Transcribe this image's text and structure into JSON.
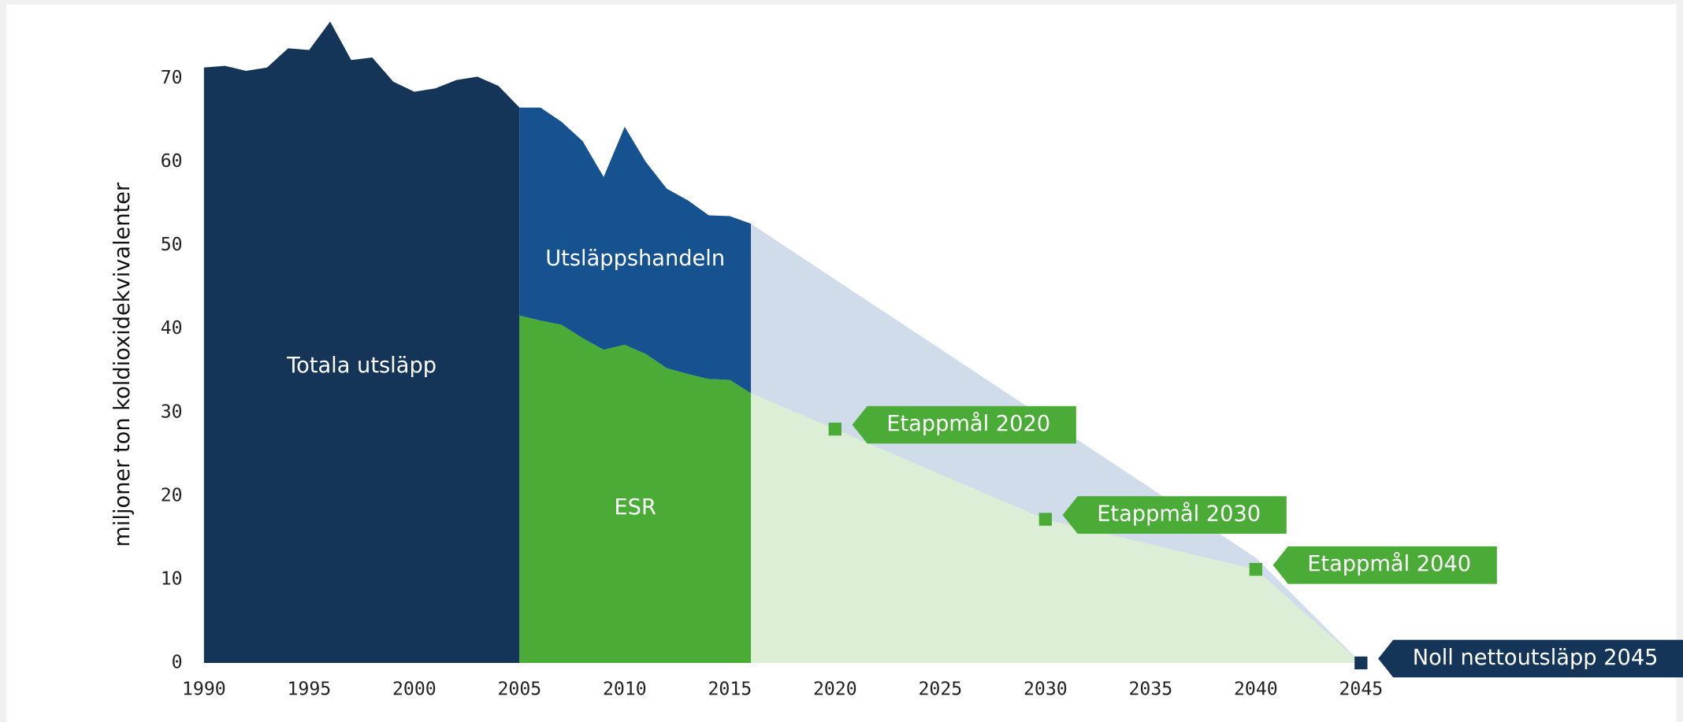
{
  "chart_data": {
    "type": "area",
    "ylabel": "miljoner ton koldioxidekvivalenter",
    "xlim": [
      1990,
      2045
    ],
    "ylim": [
      0,
      78
    ],
    "xticks": [
      1990,
      1995,
      2000,
      2005,
      2010,
      2015,
      2020,
      2025,
      2030,
      2035,
      2040,
      2045
    ],
    "yticks": [
      0,
      10,
      20,
      30,
      40,
      50,
      60,
      70
    ],
    "series": [
      {
        "color": "#d0dce9",
        "x": [
          2016,
          2040,
          2045
        ],
        "values": [
          52.6,
          12.6,
          0
        ]
      },
      {
        "color": "#dcefd6",
        "x": [
          2016,
          2020,
          2030,
          2040,
          2045
        ],
        "values": [
          32.3,
          28,
          17.2,
          11.2,
          0
        ]
      },
      {
        "name": "Totala utsläpp",
        "color": "#143558",
        "x": [
          1990,
          1991,
          1992,
          1993,
          1994,
          1995,
          1996,
          1997,
          1998,
          1999,
          2000,
          2001,
          2002,
          2003,
          2004,
          2005
        ],
        "values": [
          71.3,
          71.5,
          70.9,
          71.3,
          73.6,
          73.4,
          76.8,
          72.2,
          72.5,
          69.6,
          68.4,
          68.8,
          69.8,
          70.2,
          69.1,
          66.5
        ]
      },
      {
        "name": "ESR",
        "color": "#4aac36",
        "x": [
          2005,
          2006,
          2007,
          2008,
          2009,
          2010,
          2011,
          2012,
          2013,
          2014,
          2015,
          2016
        ],
        "values": [
          41.6,
          41.0,
          40.5,
          38.9,
          37.5,
          38.1,
          37.0,
          35.3,
          34.6,
          34.0,
          33.9,
          32.3
        ]
      },
      {
        "name": "Utsläppshandeln",
        "color": "#16528f",
        "stacked_on": 3,
        "x": [
          2005,
          2006,
          2007,
          2008,
          2009,
          2010,
          2011,
          2012,
          2013,
          2014,
          2015,
          2016
        ],
        "values": [
          24.9,
          25.5,
          24.3,
          23.6,
          20.7,
          26.1,
          23.0,
          21.5,
          20.8,
          19.6,
          19.6,
          20.3
        ]
      }
    ],
    "targets": [
      {
        "x": 2020,
        "value": 28,
        "label": "Etappmål 2020",
        "color": "#4aac36"
      },
      {
        "x": 2030,
        "value": 17.2,
        "label": "Etappmål 2030",
        "color": "#4aac36"
      },
      {
        "x": 2040,
        "value": 11.2,
        "label": "Etappmål 2040",
        "color": "#4aac36"
      },
      {
        "x": 2045,
        "value": 0,
        "label": "Noll nettoutsläpp 2045",
        "color": "#143558"
      }
    ]
  }
}
